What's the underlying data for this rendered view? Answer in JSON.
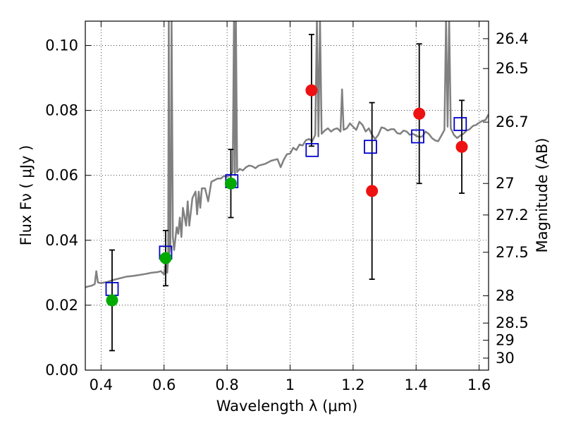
{
  "chart_data": {
    "type": "scatter",
    "xlabel": "Wavelength  λ (μm)",
    "ylabel": "Flux  Fν  ( μJy )",
    "y2label": "Magnitude (AB)",
    "xlim": [
      0.35,
      1.63
    ],
    "ylim": [
      0.0,
      0.1075
    ],
    "xticks": [
      0.4,
      0.6,
      0.8,
      1.0,
      1.2,
      1.4,
      1.6
    ],
    "xtick_labels": [
      "0.4",
      "0.6",
      "0.8",
      "1",
      "1.2",
      "1.4",
      "1.6"
    ],
    "yticks": [
      0.0,
      0.02,
      0.04,
      0.06,
      0.08,
      0.1
    ],
    "ytick_labels": [
      "0.00",
      "0.02",
      "0.04",
      "0.06",
      "0.08",
      "0.10"
    ],
    "mag_ticks": [
      {
        "flux": 0.1021,
        "label": "26.4"
      },
      {
        "flux": 0.0929,
        "label": "26.5"
      },
      {
        "flux": 0.0764,
        "label": "26.7"
      },
      {
        "flux": 0.0575,
        "label": "27"
      },
      {
        "flux": 0.0478,
        "label": "27.2"
      },
      {
        "flux": 0.0363,
        "label": "27.5"
      },
      {
        "flux": 0.0229,
        "label": "28"
      },
      {
        "flux": 0.0145,
        "label": "28.5"
      },
      {
        "flux": 0.0092,
        "label": "29"
      },
      {
        "flux": 0.0037,
        "label": "30"
      }
    ],
    "grid": true,
    "colors": {
      "spectrum": "#808080",
      "model_box": "#0000cc",
      "detection": "#00aa00",
      "upper": "#ee1111",
      "errorbar": "#000000"
    },
    "spectrum": [
      [
        0.35,
        0.0255
      ],
      [
        0.36,
        0.0258
      ],
      [
        0.37,
        0.026
      ],
      [
        0.38,
        0.0265
      ],
      [
        0.385,
        0.0305
      ],
      [
        0.39,
        0.027
      ],
      [
        0.4,
        0.0268
      ],
      [
        0.42,
        0.0272
      ],
      [
        0.44,
        0.0278
      ],
      [
        0.46,
        0.0283
      ],
      [
        0.48,
        0.0288
      ],
      [
        0.5,
        0.029
      ],
      [
        0.52,
        0.0293
      ],
      [
        0.54,
        0.0296
      ],
      [
        0.56,
        0.03
      ],
      [
        0.58,
        0.0302
      ],
      [
        0.59,
        0.0305
      ],
      [
        0.6,
        0.0295
      ],
      [
        0.605,
        0.033
      ],
      [
        0.61,
        0.03
      ],
      [
        0.613,
        0.034
      ],
      [
        0.615,
        0.108
      ],
      [
        0.617,
        0.036
      ],
      [
        0.62,
        0.038
      ],
      [
        0.624,
        0.108
      ],
      [
        0.628,
        0.041
      ],
      [
        0.632,
        0.037
      ],
      [
        0.64,
        0.044
      ],
      [
        0.645,
        0.042
      ],
      [
        0.65,
        0.047
      ],
      [
        0.655,
        0.041
      ],
      [
        0.66,
        0.05
      ],
      [
        0.67,
        0.0445
      ],
      [
        0.675,
        0.052
      ],
      [
        0.68,
        0.0445
      ],
      [
        0.69,
        0.053
      ],
      [
        0.7,
        0.055
      ],
      [
        0.705,
        0.048
      ],
      [
        0.71,
        0.055
      ],
      [
        0.715,
        0.05
      ],
      [
        0.72,
        0.056
      ],
      [
        0.73,
        0.056
      ],
      [
        0.74,
        0.052
      ],
      [
        0.75,
        0.058
      ],
      [
        0.76,
        0.0585
      ],
      [
        0.77,
        0.059
      ],
      [
        0.78,
        0.059
      ],
      [
        0.79,
        0.0598
      ],
      [
        0.8,
        0.0595
      ],
      [
        0.81,
        0.0602
      ],
      [
        0.818,
        0.061
      ],
      [
        0.822,
        0.108
      ],
      [
        0.825,
        0.06
      ],
      [
        0.828,
        0.108
      ],
      [
        0.832,
        0.061
      ],
      [
        0.84,
        0.062
      ],
      [
        0.85,
        0.0615
      ],
      [
        0.86,
        0.0625
      ],
      [
        0.87,
        0.063
      ],
      [
        0.88,
        0.0628
      ],
      [
        0.89,
        0.0622
      ],
      [
        0.9,
        0.063
      ],
      [
        0.92,
        0.0635
      ],
      [
        0.94,
        0.0645
      ],
      [
        0.96,
        0.065
      ],
      [
        0.97,
        0.0625
      ],
      [
        0.98,
        0.0648
      ],
      [
        0.99,
        0.0665
      ],
      [
        1.0,
        0.0667
      ],
      [
        1.01,
        0.0685
      ],
      [
        1.02,
        0.0678
      ],
      [
        1.03,
        0.0695
      ],
      [
        1.04,
        0.0692
      ],
      [
        1.05,
        0.0708
      ],
      [
        1.06,
        0.0712
      ],
      [
        1.07,
        0.0705
      ],
      [
        1.08,
        0.0725
      ],
      [
        1.085,
        0.108
      ],
      [
        1.09,
        0.072
      ],
      [
        1.095,
        0.108
      ],
      [
        1.1,
        0.0728
      ],
      [
        1.11,
        0.0738
      ],
      [
        1.12,
        0.0745
      ],
      [
        1.13,
        0.0735
      ],
      [
        1.14,
        0.0742
      ],
      [
        1.15,
        0.0745
      ],
      [
        1.16,
        0.0735
      ],
      [
        1.165,
        0.0865
      ],
      [
        1.17,
        0.074
      ],
      [
        1.18,
        0.0745
      ],
      [
        1.19,
        0.076
      ],
      [
        1.2,
        0.075
      ],
      [
        1.21,
        0.074
      ],
      [
        1.22,
        0.0765
      ],
      [
        1.23,
        0.0755
      ],
      [
        1.24,
        0.0735
      ],
      [
        1.25,
        0.0745
      ],
      [
        1.26,
        0.0725
      ],
      [
        1.27,
        0.0712
      ],
      [
        1.28,
        0.0725
      ],
      [
        1.29,
        0.0748
      ],
      [
        1.3,
        0.0745
      ],
      [
        1.31,
        0.0738
      ],
      [
        1.32,
        0.0742
      ],
      [
        1.33,
        0.0742
      ],
      [
        1.34,
        0.073
      ],
      [
        1.35,
        0.0728
      ],
      [
        1.36,
        0.0738
      ],
      [
        1.37,
        0.0735
      ],
      [
        1.38,
        0.0725
      ],
      [
        1.39,
        0.0728
      ],
      [
        1.4,
        0.0722
      ],
      [
        1.41,
        0.0718
      ],
      [
        1.42,
        0.072
      ],
      [
        1.43,
        0.0735
      ],
      [
        1.44,
        0.0728
      ],
      [
        1.45,
        0.0715
      ],
      [
        1.46,
        0.0708
      ],
      [
        1.47,
        0.0705
      ],
      [
        1.48,
        0.0722
      ],
      [
        1.49,
        0.074
      ],
      [
        1.495,
        0.108
      ],
      [
        1.5,
        0.075
      ],
      [
        1.505,
        0.108
      ],
      [
        1.51,
        0.0745
      ],
      [
        1.52,
        0.0725
      ],
      [
        1.53,
        0.0715
      ],
      [
        1.54,
        0.0722
      ],
      [
        1.55,
        0.0728
      ],
      [
        1.56,
        0.0738
      ],
      [
        1.57,
        0.0742
      ],
      [
        1.58,
        0.0752
      ],
      [
        1.59,
        0.0755
      ],
      [
        1.6,
        0.0762
      ],
      [
        1.61,
        0.0768
      ],
      [
        1.62,
        0.077
      ],
      [
        1.63,
        0.0788
      ]
    ],
    "model_points": [
      {
        "x": 0.435,
        "y": 0.025
      },
      {
        "x": 0.605,
        "y": 0.0362
      },
      {
        "x": 0.815,
        "y": 0.0582
      },
      {
        "x": 1.07,
        "y": 0.0678
      },
      {
        "x": 1.255,
        "y": 0.0688
      },
      {
        "x": 1.405,
        "y": 0.072
      },
      {
        "x": 1.54,
        "y": 0.0758
      }
    ],
    "observed_points": [
      {
        "x": 0.435,
        "y": 0.0215,
        "err_low": 0.0155,
        "err_high": 0.0155,
        "status": "detection"
      },
      {
        "x": 0.605,
        "y": 0.0345,
        "err_low": 0.0085,
        "err_high": 0.0085,
        "status": "detection"
      },
      {
        "x": 0.812,
        "y": 0.0575,
        "err_low": 0.0105,
        "err_high": 0.0105,
        "status": "detection"
      },
      {
        "x": 1.068,
        "y": 0.0862,
        "err_low": 0.0172,
        "err_high": 0.0172,
        "status": "upper"
      },
      {
        "x": 1.26,
        "y": 0.0552,
        "err_low": 0.0272,
        "err_high": 0.0272,
        "status": "upper"
      },
      {
        "x": 1.41,
        "y": 0.079,
        "err_low": 0.0215,
        "err_high": 0.0215,
        "status": "upper"
      },
      {
        "x": 1.545,
        "y": 0.0688,
        "err_low": 0.0143,
        "err_high": 0.0143,
        "status": "upper"
      }
    ]
  }
}
